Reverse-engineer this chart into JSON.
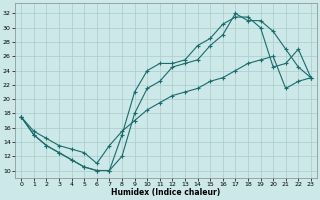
{
  "xlabel": "Humidex (Indice chaleur)",
  "bg_color": "#cce8e8",
  "line_color": "#1a6b6b",
  "grid_color": "#aacccc",
  "xlim": [
    -0.5,
    23.5
  ],
  "ylim": [
    9.0,
    33.5
  ],
  "xticks": [
    0,
    1,
    2,
    3,
    4,
    5,
    6,
    7,
    8,
    9,
    10,
    11,
    12,
    13,
    14,
    15,
    16,
    17,
    18,
    19,
    20,
    21,
    22,
    23
  ],
  "yticks": [
    10,
    12,
    14,
    16,
    18,
    20,
    22,
    24,
    26,
    28,
    30,
    32
  ],
  "line1_x": [
    0,
    1,
    2,
    3,
    4,
    5,
    6,
    7,
    8,
    9,
    10,
    11,
    12,
    13,
    14,
    15,
    16,
    17,
    18,
    19,
    20,
    21,
    22,
    23
  ],
  "line1_y": [
    17.5,
    15.0,
    13.5,
    12.5,
    11.5,
    10.5,
    10.0,
    10.0,
    12.0,
    18.0,
    21.5,
    22.5,
    24.5,
    25.0,
    25.5,
    27.5,
    29.0,
    32.0,
    31.0,
    31.0,
    29.5,
    27.0,
    24.5,
    23.0
  ],
  "line2_x": [
    0,
    1,
    2,
    3,
    4,
    5,
    6,
    7,
    8,
    9,
    10,
    11,
    12,
    13,
    14,
    15,
    16,
    17,
    18,
    19,
    20,
    21,
    22,
    23
  ],
  "line2_y": [
    17.5,
    15.0,
    13.5,
    12.5,
    11.5,
    10.5,
    10.0,
    10.0,
    15.0,
    21.0,
    24.0,
    25.0,
    25.0,
    25.5,
    27.5,
    28.5,
    30.5,
    31.5,
    31.5,
    30.0,
    24.5,
    25.0,
    27.0,
    23.0
  ],
  "line3_x": [
    0,
    1,
    2,
    3,
    4,
    5,
    6,
    7,
    8,
    9,
    10,
    11,
    12,
    13,
    14,
    15,
    16,
    17,
    18,
    19,
    20,
    21,
    22,
    23
  ],
  "line3_y": [
    17.5,
    15.5,
    14.5,
    13.5,
    13.0,
    12.5,
    11.0,
    13.5,
    15.5,
    17.0,
    18.5,
    19.5,
    20.5,
    21.0,
    21.5,
    22.5,
    23.0,
    24.0,
    25.0,
    25.5,
    26.0,
    21.5,
    22.5,
    23.0
  ]
}
